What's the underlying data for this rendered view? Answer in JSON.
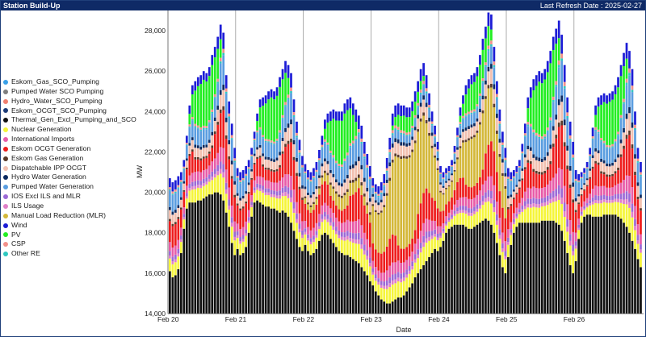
{
  "header": {
    "title": "Station Build-Up",
    "refresh": "Last Refresh Date : 2025-02-27"
  },
  "chart_data": {
    "type": "bar",
    "stacked": true,
    "xlabel": "Date",
    "ylabel": "MW",
    "ylim": [
      14000,
      29000
    ],
    "yticks": [
      "14,000",
      "16,000",
      "18,000",
      "20,000",
      "22,000",
      "24,000",
      "26,000",
      "28,000"
    ],
    "ytick_values": [
      14000,
      16000,
      18000,
      20000,
      22000,
      24000,
      26000,
      28000
    ],
    "xticks": [
      "Feb 20",
      "Feb 21",
      "Feb 22",
      "Feb 23",
      "Feb 24",
      "Feb 25",
      "Feb 26"
    ],
    "legend_position": "left",
    "series": [
      {
        "name": "Eskom_Gas_SCO_Pumping",
        "color": "#3aa0e8"
      },
      {
        "name": "Pumped Water SCO Pumping",
        "color": "#7f7f7f"
      },
      {
        "name": "Hydro_Water_SCO_Pumping",
        "color": "#f08070"
      },
      {
        "name": "Eskom_OCGT_SCO_Pumping",
        "color": "#1e3c78"
      },
      {
        "name": "Thermal_Gen_Excl_Pumping_and_SCO",
        "color": "#111111"
      },
      {
        "name": "Nuclear Generation",
        "color": "#f5f53a"
      },
      {
        "name": "International Imports",
        "color": "#e85ca8"
      },
      {
        "name": "Eskom OCGT Generation",
        "color": "#ee1c1c"
      },
      {
        "name": "Eskom Gas Generation",
        "color": "#5a3a2a"
      },
      {
        "name": "Dispatchable IPP OCGT",
        "color": "#f2c0b0"
      },
      {
        "name": "Hydro Water Generation",
        "color": "#0c2a60"
      },
      {
        "name": "Pumped Water Generation",
        "color": "#5a9de0"
      },
      {
        "name": "IOS Excl ILS and MLR",
        "color": "#9c6ad6"
      },
      {
        "name": "ILS Usage",
        "color": "#e080c8"
      },
      {
        "name": "Manual Load Reduction (MLR)",
        "color": "#d4b83a"
      },
      {
        "name": "Wind",
        "color": "#1c1cd6"
      },
      {
        "name": "PV",
        "color": "#22ee22"
      },
      {
        "name": "CSP",
        "color": "#f2908a"
      },
      {
        "name": "Other RE",
        "color": "#2ec8c0"
      }
    ],
    "hourly_totals_mw": [
      [
        20700,
        20500,
        20600,
        20800,
        21000,
        21600,
        22800,
        24300,
        25300,
        25500,
        25700,
        25800,
        26000,
        25900,
        26200,
        26800,
        27200,
        27700,
        28300,
        27900,
        25800,
        24500,
        23400,
        22200
      ],
      [
        21200,
        21000,
        21100,
        21300,
        21600,
        22200,
        23000,
        23900,
        24600,
        24700,
        24800,
        25000,
        25100,
        25000,
        25200,
        25700,
        26100,
        26500,
        26300,
        25900,
        24600,
        23500,
        22600,
        21800
      ],
      [
        21400,
        21100,
        21000,
        21200,
        21500,
        22100,
        22800,
        23600,
        23900,
        24000,
        24100,
        24000,
        24000,
        24000,
        24400,
        24600,
        24700,
        24400,
        24100,
        23800,
        23300,
        22500,
        21900,
        21300
      ],
      [
        20700,
        20400,
        20300,
        20500,
        20900,
        21700,
        22700,
        23900,
        24300,
        24400,
        24300,
        24300,
        24200,
        24200,
        24500,
        25000,
        25500,
        26100,
        26400,
        25800,
        24900,
        24000,
        23300,
        22500
      ],
      [
        21300,
        21000,
        21200,
        21300,
        21600,
        22300,
        23200,
        24200,
        24800,
        25300,
        25600,
        25800,
        25900,
        26200,
        26800,
        27600,
        28200,
        28900,
        28800,
        27200,
        25500,
        24100,
        23000,
        22200
      ],
      [
        21200,
        21000,
        21100,
        21300,
        21600,
        22400,
        23400,
        24700,
        25200,
        25600,
        25800,
        26000,
        25900,
        26100,
        26500,
        27000,
        27700,
        28100,
        28500,
        27800,
        26300,
        24700,
        23500,
        22500
      ],
      [
        21100,
        20900,
        21000,
        21200,
        21500,
        22200,
        23200,
        24300,
        24700,
        24800,
        24900,
        24800,
        24900,
        25000,
        25300,
        25700,
        26300,
        26900,
        27400,
        27000,
        26100,
        24000,
        22200,
        21500
      ]
    ],
    "hourly_thermal_mw": [
      [
        16100,
        15800,
        15900,
        16200,
        17000,
        18200,
        19200,
        19500,
        19500,
        19500,
        19600,
        19600,
        19700,
        19800,
        19900,
        19900,
        20000,
        20000,
        19900,
        19600,
        19000,
        18300,
        17500,
        16900
      ],
      [
        17200,
        16900,
        17000,
        17300,
        18000,
        18800,
        19500,
        19600,
        19500,
        19400,
        19300,
        19300,
        19200,
        19200,
        19100,
        19000,
        19100,
        19000,
        18800,
        18500,
        18100,
        17700,
        17300,
        17100
      ],
      [
        17400,
        17100,
        16900,
        17000,
        17200,
        17600,
        17900,
        18000,
        17900,
        17700,
        17500,
        17300,
        17100,
        17000,
        16900,
        16900,
        16800,
        16700,
        16600,
        16500,
        16300,
        16100,
        15900,
        15600
      ],
      [
        15400,
        15100,
        14900,
        14700,
        14600,
        14500,
        14500,
        14600,
        14700,
        14800,
        14800,
        14900,
        15100,
        15300,
        15500,
        15800,
        16000,
        16200,
        16400,
        16600,
        16800,
        17000,
        17200,
        17100
      ],
      [
        17300,
        17600,
        18000,
        18200,
        18300,
        18400,
        18400,
        18400,
        18400,
        18300,
        18200,
        18200,
        18300,
        18400,
        18500,
        18600,
        18700,
        18600,
        18400,
        18000,
        17500,
        16900,
        16300,
        16000
      ],
      [
        16800,
        17400,
        18000,
        18300,
        18500,
        18500,
        18500,
        18500,
        18500,
        18500,
        18500,
        18500,
        18600,
        18600,
        18600,
        18600,
        18600,
        18500,
        18400,
        18100,
        17600,
        17000,
        16400,
        16000
      ],
      [
        16600,
        17700,
        18500,
        18800,
        18900,
        18900,
        18800,
        18800,
        18800,
        18800,
        18900,
        18900,
        18900,
        18900,
        18900,
        18800,
        18700,
        18500,
        18300,
        18000,
        17600,
        17200,
        16700,
        16300
      ]
    ]
  }
}
